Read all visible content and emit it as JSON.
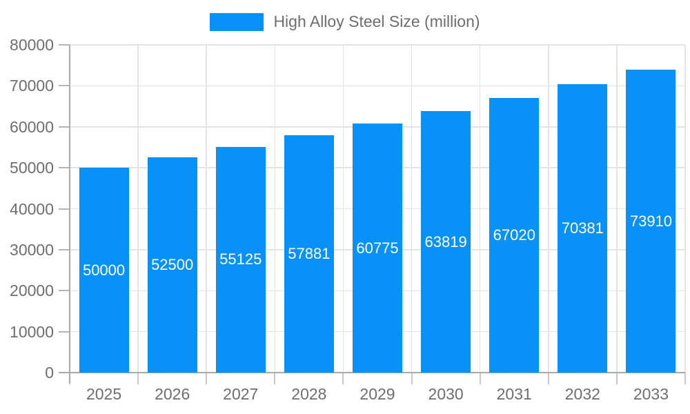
{
  "chart_data": {
    "type": "bar",
    "title": "High Alloy Steel Size (million)",
    "categories": [
      "2025",
      "2026",
      "2027",
      "2028",
      "2029",
      "2030",
      "2031",
      "2032",
      "2033"
    ],
    "values": [
      50000,
      52500,
      55125,
      57881,
      60775,
      63819,
      67020,
      70381,
      73910
    ],
    "value_labels": [
      "50000",
      "52500",
      "55125",
      "57881",
      "60775",
      "63819",
      "67020",
      "70381",
      "73910"
    ],
    "xlabel": "",
    "ylabel": "",
    "ylim": [
      0,
      80000
    ],
    "yticks": [
      0,
      10000,
      20000,
      30000,
      40000,
      50000,
      60000,
      70000,
      80000
    ],
    "ytick_labels": [
      "0",
      "10000",
      "20000",
      "30000",
      "40000",
      "50000",
      "60000",
      "70000",
      "80000"
    ],
    "grid": true,
    "vertical_grid": true,
    "legend_position": "top-center",
    "bar_width_ratio": 0.727,
    "colors": {
      "bar": "#0892f8",
      "grid": "#e4e4e4",
      "axis": "#a9a9a9",
      "tick": "#b5b5b5",
      "tick_bottom": "#c8c8c8",
      "label_text": "#6e6e6e",
      "value_text": "#ffffff",
      "background": "#ffffff"
    }
  }
}
